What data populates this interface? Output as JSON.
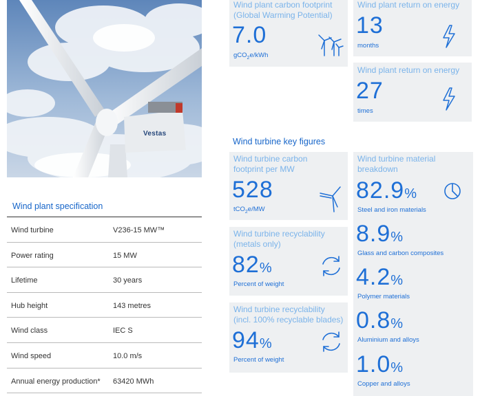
{
  "photo": {
    "brand_text": "Vestas"
  },
  "spec": {
    "title": "Wind plant specification",
    "rows": [
      {
        "label": "Wind turbine",
        "value": "V236-15 MW™"
      },
      {
        "label": "Power rating",
        "value": "15 MW"
      },
      {
        "label": "Lifetime",
        "value": "30 years"
      },
      {
        "label": "Hub height",
        "value": "143 metres"
      },
      {
        "label": "Wind class",
        "value": "IEC S"
      },
      {
        "label": "Wind speed",
        "value": "10.0 m/s"
      },
      {
        "label": "Annual energy production*",
        "value": "63420 MWh"
      }
    ]
  },
  "plant_carbon": {
    "title_line1": "Wind plant carbon footprint",
    "title_line2": "(Global Warming Potential)",
    "value": "7.0",
    "unit_pre": "gCO",
    "unit_sub": "2",
    "unit_post": "e/kWh",
    "icon": "wind-farm-icon"
  },
  "return_months": {
    "title": "Wind plant return on energy",
    "value": "13",
    "unit": "months",
    "icon": "lightning-icon"
  },
  "return_times": {
    "title": "Wind plant return on energy",
    "value": "27",
    "unit": "times",
    "icon": "lightning-icon"
  },
  "key_figures": {
    "title": "Wind turbine key figures"
  },
  "turbine_carbon": {
    "title_line1": "Wind turbine carbon",
    "title_line2": "footprint per MW",
    "value": "528",
    "unit_pre": "tCO",
    "unit_sub": "2",
    "unit_post": "e/MW",
    "icon": "wind-turbine-icon"
  },
  "recyclability_metals": {
    "title_line1": "Wind turbine recyclability",
    "title_line2": "(metals only)",
    "value": "82",
    "pct": "%",
    "unit": "Percent of weight",
    "icon": "recycle-icon"
  },
  "recyclability_blades": {
    "title_line1": "Wind turbine recyclability",
    "title_line2": "(incl. 100% recyclable blades)",
    "value": "94",
    "pct": "%",
    "unit": "Percent of weight",
    "icon": "recycle-icon"
  },
  "material": {
    "title_line1": "Wind turbine material",
    "title_line2": "breakdown",
    "icon": "pie-chart-icon",
    "items": [
      {
        "value": "82.9",
        "pct": "%",
        "label": "Steel and iron materials"
      },
      {
        "value": "8.9",
        "pct": "%",
        "label": "Glass and carbon composites"
      },
      {
        "value": "4.2",
        "pct": "%",
        "label": "Polymer materials"
      },
      {
        "value": "0.8",
        "pct": "%",
        "label": "Aluminium and alloys"
      },
      {
        "value": "1.0",
        "pct": "%",
        "label": "Copper and alloys"
      }
    ]
  },
  "colors": {
    "accent": "#1e6fd6",
    "title_light": "#7ab3ea",
    "card_bg": "#eef0f2"
  }
}
